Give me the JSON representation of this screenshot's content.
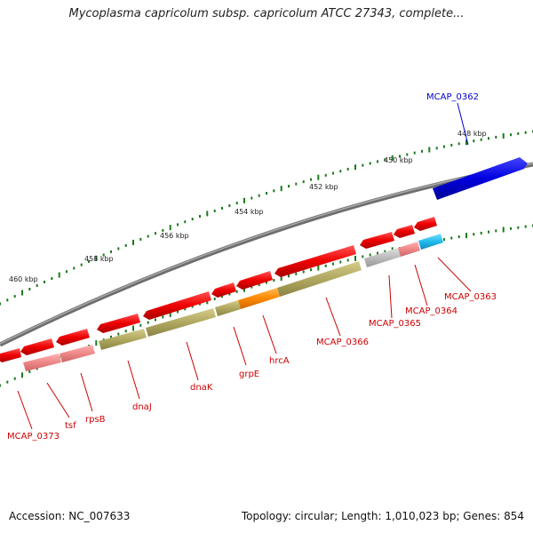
{
  "title": "Mycoplasma capricolum subsp. capricolum ATCC 27343, complete...",
  "footer": {
    "accession": "Accession: NC_007633",
    "topology": "Topology: circular; Length: 1,010,023 bp; Genes: 854"
  },
  "colors": {
    "backbone": "#808080",
    "tick": "#1a7a1a",
    "gene_red": "#ee0000",
    "gene_pink": "#ee8888",
    "gene_olive": "#b0a860",
    "gene_orange": "#ff8800",
    "gene_gray": "#bbbbbb",
    "gene_cyan": "#22bbee",
    "gene_blue": "#0000dd",
    "label_red": "#cc0000",
    "label_blue": "#0000cc"
  },
  "scale": {
    "labels": [
      "448 kbp",
      "450 kbp",
      "452 kbp",
      "454 kbp",
      "456 kbp",
      "458 kbp",
      "460 kbp"
    ]
  },
  "genes": [
    {
      "label": "MCAP_0362",
      "color": "blue"
    },
    {
      "label": "MCAP_0363",
      "color": "red"
    },
    {
      "label": "MCAP_0364",
      "color": "red"
    },
    {
      "label": "MCAP_0365",
      "color": "red"
    },
    {
      "label": "MCAP_0366",
      "color": "red"
    },
    {
      "label": "hrcA",
      "color": "red"
    },
    {
      "label": "grpE",
      "color": "red"
    },
    {
      "label": "dnaK",
      "color": "red"
    },
    {
      "label": "dnaJ",
      "color": "red"
    },
    {
      "label": "rpsB",
      "color": "red"
    },
    {
      "label": "tsf",
      "color": "red"
    },
    {
      "label": "MCAP_0373",
      "color": "red"
    }
  ]
}
